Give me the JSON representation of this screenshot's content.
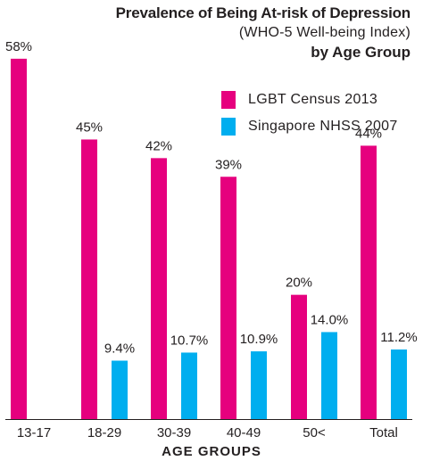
{
  "colors": {
    "lgbt": "#e6007e",
    "nhss": "#00aeef",
    "axis": "#231f20",
    "text": "#231f20"
  },
  "chart_data": {
    "type": "bar",
    "title": "Prevalence of Being At-risk of Depression",
    "subtitle": "(WHO-5 Well-being Index)",
    "subtitle2": "by Age Group",
    "xlabel": "AGE GROUPS",
    "ylabel": "",
    "ylim": [
      0,
      62
    ],
    "grid": false,
    "legend_position": "top-right",
    "categories": [
      "13-17",
      "18-29",
      "30-39",
      "40-49",
      "50<",
      "Total"
    ],
    "series": [
      {
        "name": "LGBT Census 2013",
        "color": "#e6007e",
        "values": [
          58,
          45,
          42,
          39,
          20,
          44
        ],
        "labels": [
          "58%",
          "45%",
          "42%",
          "39%",
          "20%",
          "44%"
        ]
      },
      {
        "name": "Singapore NHSS 2007",
        "color": "#00aeef",
        "values": [
          null,
          9.4,
          10.7,
          10.9,
          14.0,
          11.2
        ],
        "labels": [
          null,
          "9.4%",
          "10.7%",
          "10.9%",
          "14.0%",
          "11.2%"
        ]
      }
    ]
  }
}
